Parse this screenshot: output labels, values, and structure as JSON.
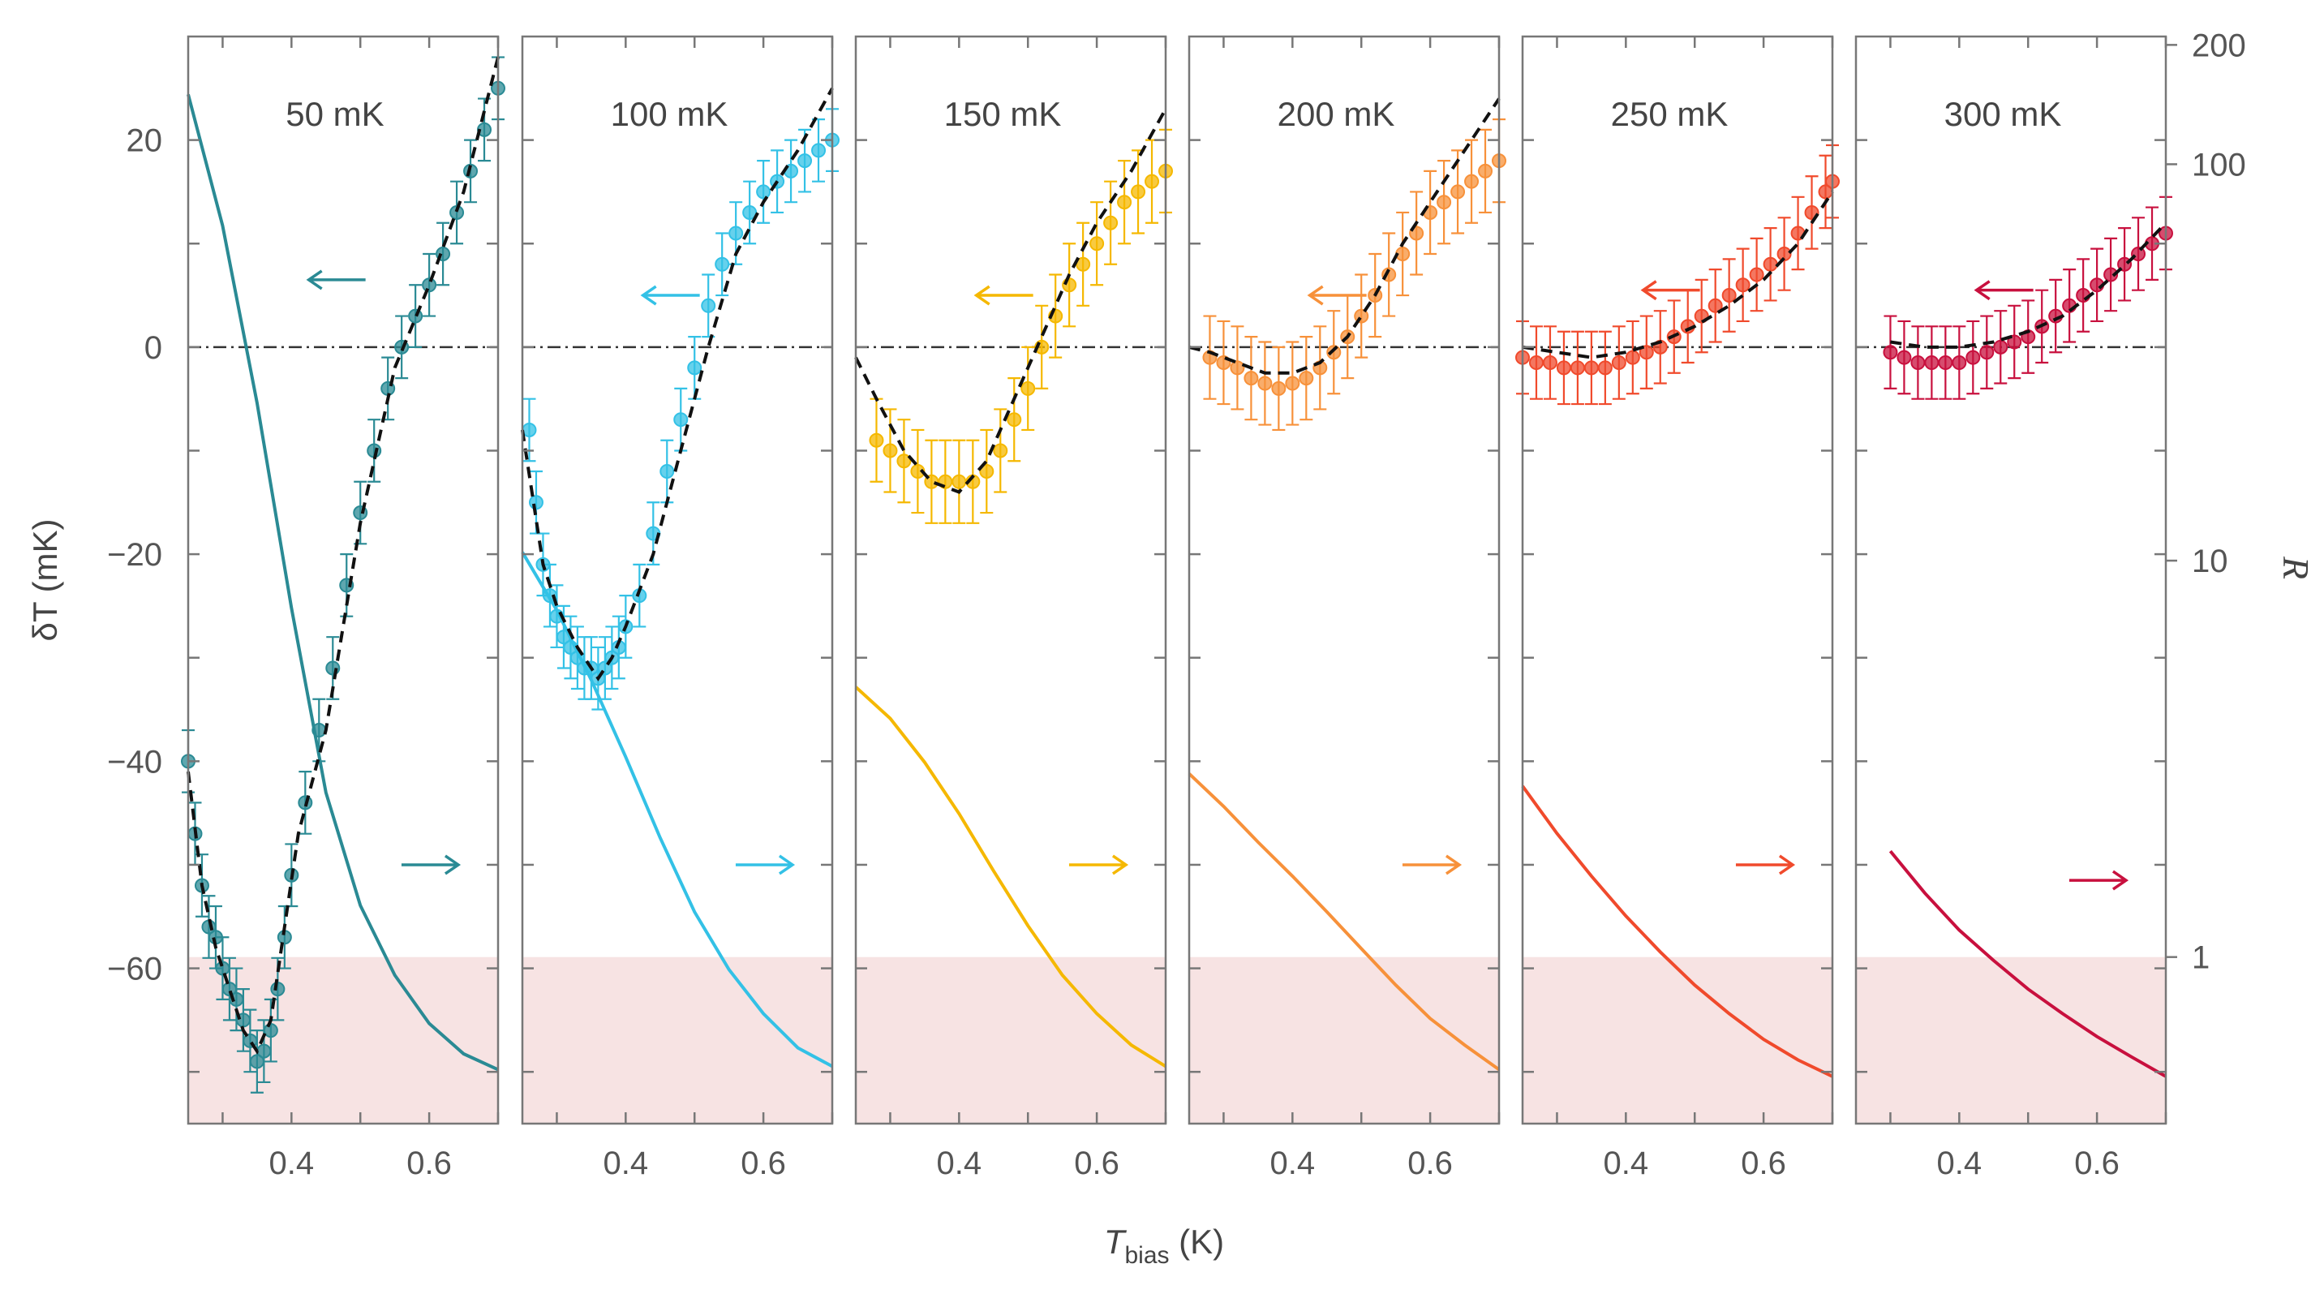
{
  "chart_data": {
    "type": "line",
    "xlabel_main": "T",
    "xlabel_sub": "bias",
    "xlabel_unit": " (K)",
    "ylabel_left": "δT (mK)",
    "ylabel_right": "R",
    "xlim": [
      0.25,
      0.7
    ],
    "ylim_left": [
      -75,
      30
    ],
    "ylim_right_log": [
      0.38,
      210
    ],
    "x_ticks": [
      0.3,
      0.4,
      0.5,
      0.6,
      0.7
    ],
    "x_tick_labels": [
      {
        "value": 0.4,
        "label": "0.4"
      },
      {
        "value": 0.6,
        "label": "0.6"
      }
    ],
    "y_left_ticks": [
      -70,
      -60,
      -50,
      -40,
      -30,
      -20,
      -10,
      0,
      10,
      20
    ],
    "y_left_tick_labels": [
      {
        "value": 20,
        "label": "20"
      },
      {
        "value": 0,
        "label": "0"
      },
      {
        "value": -20,
        "label": "−20"
      },
      {
        "value": -40,
        "label": "−40"
      },
      {
        "value": -60,
        "label": "−60"
      }
    ],
    "y_right_tick_labels": [
      {
        "value": 200,
        "label": "200"
      },
      {
        "value": 100,
        "label": "100"
      },
      {
        "value": 10,
        "label": "10"
      },
      {
        "value": 1,
        "label": "1"
      }
    ],
    "shaded_region_below_R": 1,
    "colors": {
      "shade": "#f7e3e3",
      "frame": "#777777",
      "zero_line": "#333333",
      "fit_line": "#111111"
    },
    "panels": [
      {
        "label": "50 mK",
        "color": "#2a8a94",
        "err": 3,
        "x": [
          0.25,
          0.26,
          0.27,
          0.28,
          0.29,
          0.3,
          0.31,
          0.32,
          0.33,
          0.34,
          0.35,
          0.36,
          0.37,
          0.38,
          0.39,
          0.4,
          0.42,
          0.44,
          0.46,
          0.48,
          0.5,
          0.52,
          0.54,
          0.56,
          0.58,
          0.6,
          0.62,
          0.64,
          0.66,
          0.68,
          0.7
        ],
        "y": [
          -40,
          -47,
          -52,
          -56,
          -57,
          -60,
          -62,
          -63,
          -65,
          -67,
          -69,
          -68,
          -66,
          -62,
          -57,
          -51,
          -44,
          -37,
          -31,
          -23,
          -16,
          -10,
          -4,
          0,
          3,
          6,
          9,
          13,
          17,
          21,
          25
        ],
        "fit_x": [
          0.25,
          0.27,
          0.29,
          0.31,
          0.33,
          0.35,
          0.37,
          0.39,
          0.41,
          0.45,
          0.5,
          0.55,
          0.6,
          0.65,
          0.7
        ],
        "fit_y": [
          -41,
          -52,
          -58,
          -62,
          -66,
          -68,
          -65,
          -56,
          -47,
          -37,
          -17,
          -2,
          6,
          15,
          28
        ],
        "R_x": [
          0.25,
          0.3,
          0.35,
          0.4,
          0.45,
          0.5,
          0.55,
          0.6,
          0.65,
          0.7
        ],
        "R_y": [
          150,
          70,
          25,
          7.6,
          2.6,
          1.35,
          0.9,
          0.68,
          0.57,
          0.52
        ]
      },
      {
        "label": "100 mK",
        "color": "#33c1e6",
        "err": 3,
        "x": [
          0.26,
          0.27,
          0.28,
          0.29,
          0.3,
          0.31,
          0.32,
          0.33,
          0.34,
          0.35,
          0.36,
          0.37,
          0.38,
          0.39,
          0.4,
          0.42,
          0.44,
          0.46,
          0.48,
          0.5,
          0.52,
          0.54,
          0.56,
          0.58,
          0.6,
          0.62,
          0.64,
          0.66,
          0.68,
          0.7
        ],
        "y": [
          -8,
          -15,
          -21,
          -24,
          -26,
          -28,
          -29,
          -30,
          -31,
          -31,
          -32,
          -31,
          -30,
          -29,
          -27,
          -24,
          -18,
          -12,
          -7,
          -2,
          4,
          8,
          11,
          13,
          15,
          16,
          17,
          18,
          19,
          20
        ],
        "fit_x": [
          0.25,
          0.28,
          0.3,
          0.33,
          0.36,
          0.38,
          0.4,
          0.44,
          0.48,
          0.52,
          0.56,
          0.6,
          0.65,
          0.7
        ],
        "fit_y": [
          -8,
          -21,
          -25,
          -29,
          -32,
          -30,
          -27,
          -20,
          -10,
          0,
          9,
          14,
          19,
          25
        ],
        "R_x": [
          0.25,
          0.3,
          0.35,
          0.4,
          0.45,
          0.5,
          0.55,
          0.6,
          0.65,
          0.7
        ],
        "R_y": [
          10.5,
          7.5,
          5.0,
          3.2,
          2.0,
          1.3,
          0.93,
          0.72,
          0.59,
          0.53
        ]
      },
      {
        "label": "150 mK",
        "color": "#f5b800",
        "err": 4,
        "x": [
          0.28,
          0.3,
          0.32,
          0.34,
          0.36,
          0.38,
          0.4,
          0.42,
          0.44,
          0.46,
          0.48,
          0.5,
          0.52,
          0.54,
          0.56,
          0.58,
          0.6,
          0.62,
          0.64,
          0.66,
          0.68,
          0.7
        ],
        "y": [
          -9,
          -10,
          -11,
          -12,
          -13,
          -13,
          -13,
          -13,
          -12,
          -10,
          -7,
          -4,
          0,
          3,
          6,
          8,
          10,
          12,
          14,
          15,
          16,
          17
        ],
        "fit_x": [
          0.25,
          0.28,
          0.32,
          0.36,
          0.4,
          0.44,
          0.48,
          0.52,
          0.56,
          0.6,
          0.65,
          0.7
        ],
        "fit_y": [
          -1,
          -5,
          -10,
          -13,
          -14,
          -11,
          -5,
          1,
          7,
          12,
          17,
          23
        ],
        "R_x": [
          0.25,
          0.3,
          0.35,
          0.4,
          0.45,
          0.5,
          0.55,
          0.6,
          0.65,
          0.7
        ],
        "R_y": [
          4.8,
          4.0,
          3.1,
          2.3,
          1.65,
          1.2,
          0.9,
          0.72,
          0.6,
          0.53
        ]
      },
      {
        "label": "200 mK",
        "color": "#f7913a",
        "err": 4,
        "x": [
          0.28,
          0.3,
          0.32,
          0.34,
          0.36,
          0.38,
          0.4,
          0.42,
          0.44,
          0.46,
          0.48,
          0.5,
          0.52,
          0.54,
          0.56,
          0.58,
          0.6,
          0.62,
          0.64,
          0.66,
          0.68,
          0.7
        ],
        "y": [
          -1,
          -1.5,
          -2,
          -3,
          -3.5,
          -4,
          -3.5,
          -3,
          -2,
          -0.5,
          1,
          3,
          5,
          7,
          9,
          11,
          13,
          14,
          15,
          16,
          17,
          18
        ],
        "fit_x": [
          0.25,
          0.28,
          0.32,
          0.36,
          0.4,
          0.44,
          0.48,
          0.52,
          0.56,
          0.6,
          0.65,
          0.7
        ],
        "fit_y": [
          0,
          -0.5,
          -1.5,
          -2.5,
          -2.5,
          -1.5,
          1,
          5,
          10,
          14,
          19,
          24
        ],
        "R_x": [
          0.25,
          0.3,
          0.35,
          0.4,
          0.45,
          0.5,
          0.55,
          0.6,
          0.65,
          0.7
        ],
        "R_y": [
          2.9,
          2.4,
          1.95,
          1.6,
          1.3,
          1.05,
          0.85,
          0.7,
          0.6,
          0.52
        ]
      },
      {
        "label": "250 mK",
        "color": "#f04a2c",
        "err": 3.5,
        "x": [
          0.25,
          0.27,
          0.29,
          0.31,
          0.33,
          0.35,
          0.37,
          0.39,
          0.41,
          0.43,
          0.45,
          0.47,
          0.49,
          0.51,
          0.53,
          0.55,
          0.57,
          0.59,
          0.61,
          0.63,
          0.65,
          0.67,
          0.69,
          0.7
        ],
        "y": [
          -1,
          -1.5,
          -1.5,
          -2,
          -2,
          -2,
          -2,
          -1.5,
          -1,
          -0.5,
          0,
          1,
          2,
          3,
          4,
          5,
          6,
          7,
          8,
          9,
          11,
          13,
          15,
          16
        ],
        "fit_x": [
          0.25,
          0.3,
          0.35,
          0.4,
          0.45,
          0.5,
          0.55,
          0.6,
          0.65,
          0.7
        ],
        "fit_y": [
          0,
          -0.5,
          -1,
          -0.5,
          0.5,
          2,
          4,
          6.5,
          10,
          15
        ],
        "R_x": [
          0.25,
          0.3,
          0.35,
          0.4,
          0.45,
          0.5,
          0.55,
          0.6,
          0.65,
          0.7
        ],
        "R_y": [
          2.7,
          2.05,
          1.6,
          1.27,
          1.03,
          0.85,
          0.72,
          0.62,
          0.55,
          0.5
        ]
      },
      {
        "label": "300 mK",
        "color": "#c8103e",
        "err": 3.5,
        "x": [
          0.3,
          0.32,
          0.34,
          0.36,
          0.38,
          0.4,
          0.42,
          0.44,
          0.46,
          0.48,
          0.5,
          0.52,
          0.54,
          0.56,
          0.58,
          0.6,
          0.62,
          0.64,
          0.66,
          0.68,
          0.7
        ],
        "y": [
          -0.5,
          -1,
          -1.5,
          -1.5,
          -1.5,
          -1.5,
          -1,
          -0.5,
          0,
          0.5,
          1,
          2,
          3,
          4,
          5,
          6,
          7,
          8,
          9,
          10,
          11
        ],
        "fit_x": [
          0.3,
          0.35,
          0.4,
          0.45,
          0.5,
          0.55,
          0.6,
          0.65,
          0.7
        ],
        "fit_y": [
          0.5,
          0,
          0,
          0.5,
          1.5,
          3,
          5.5,
          8.5,
          12
        ],
        "R_x": [
          0.3,
          0.35,
          0.4,
          0.45,
          0.5,
          0.55,
          0.6,
          0.65,
          0.7
        ],
        "R_y": [
          1.85,
          1.45,
          1.17,
          0.98,
          0.83,
          0.72,
          0.63,
          0.56,
          0.5
        ]
      }
    ],
    "arrows": [
      {
        "panel": 0,
        "left_y": 6.5,
        "right_y": -50
      },
      {
        "panel": 1,
        "left_y": 5,
        "right_y": -50
      },
      {
        "panel": 2,
        "left_y": 5,
        "right_y": -50
      },
      {
        "panel": 3,
        "left_y": 5,
        "right_y": -50
      },
      {
        "panel": 4,
        "left_y": 5.5,
        "right_y": -50
      },
      {
        "panel": 5,
        "left_y": 5.5,
        "right_y": -51.5
      }
    ]
  }
}
